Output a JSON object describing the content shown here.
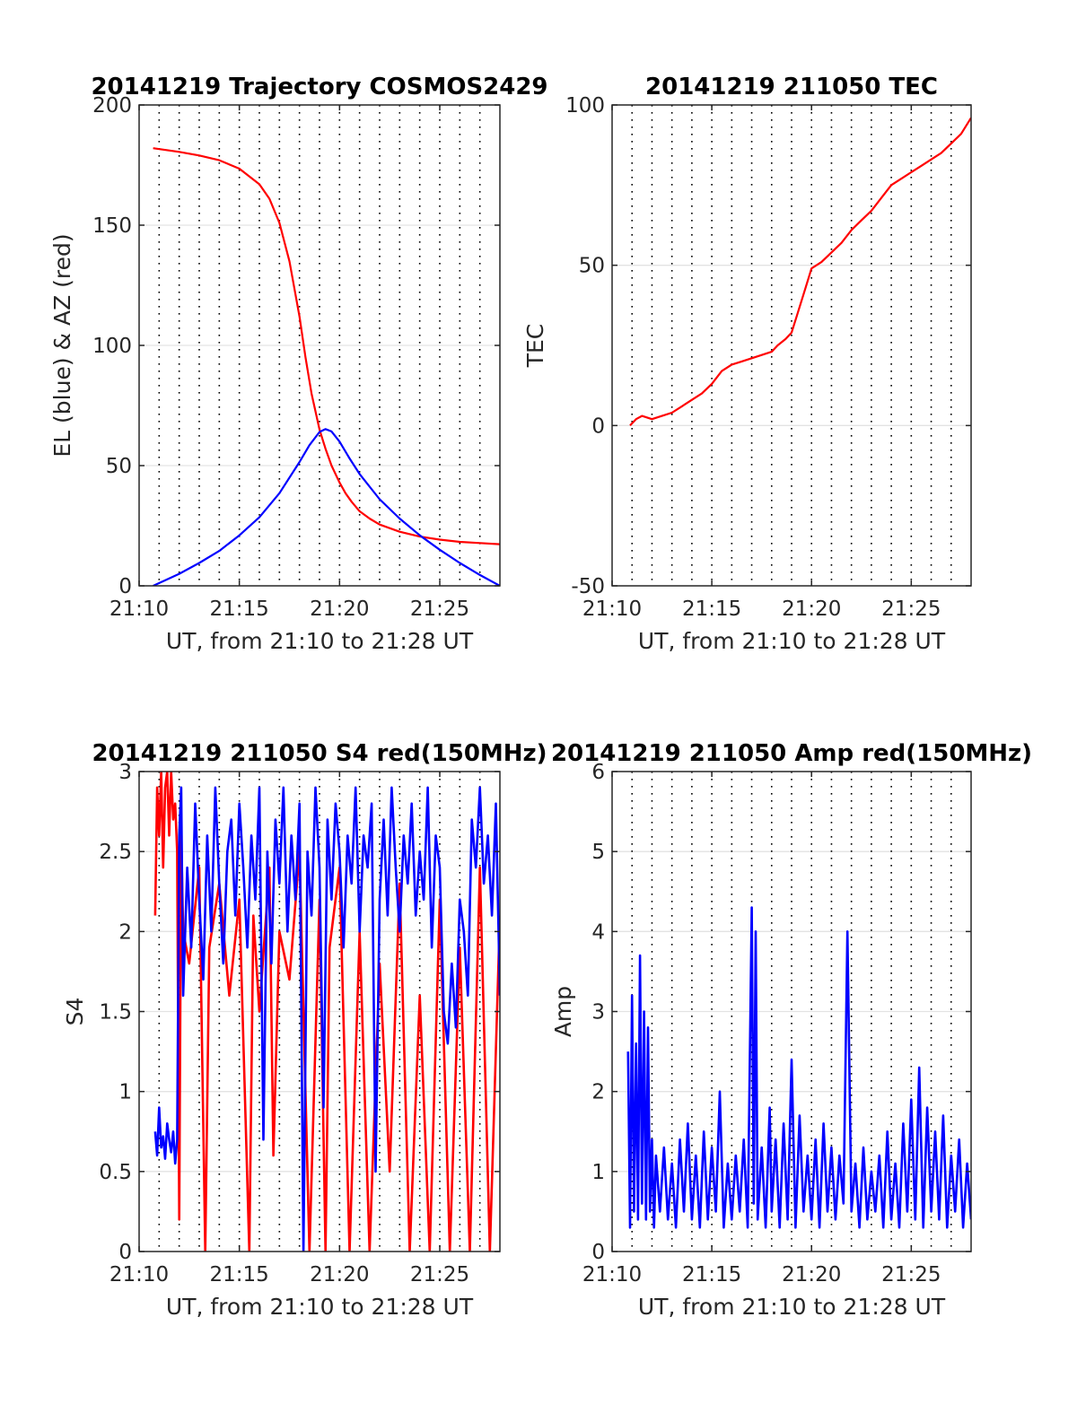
{
  "chart_data": [
    {
      "id": "trajectory",
      "type": "line",
      "title": "20141219 Trajectory COSMOS2429",
      "xlabel": "UT, from 21:10 to 21:28 UT",
      "ylabel": "EL (blue) & AZ (red)",
      "xlim": [
        0,
        18
      ],
      "ylim": [
        0,
        200
      ],
      "x_ticks": [
        {
          "v": 0,
          "label": "21:10"
        },
        {
          "v": 5,
          "label": "21:15"
        },
        {
          "v": 10,
          "label": "21:20"
        },
        {
          "v": 15,
          "label": "21:25"
        }
      ],
      "y_ticks": [
        {
          "v": 0,
          "label": "0"
        },
        {
          "v": 50,
          "label": "50"
        },
        {
          "v": 100,
          "label": "100"
        },
        {
          "v": 150,
          "label": "150"
        },
        {
          "v": 200,
          "label": "200"
        }
      ],
      "grid": "y solid, x dotted every minute",
      "series": [
        {
          "color": "#ff0000",
          "x": [
            0.7,
            2,
            3,
            4,
            5,
            6,
            6.5,
            7,
            7.5,
            8,
            8.3,
            8.6,
            9,
            9.3,
            9.6,
            10,
            10.3,
            10.6,
            11,
            11.5,
            12,
            13,
            14,
            15,
            16,
            17,
            18
          ],
          "values": [
            182,
            180.5,
            179,
            177,
            173.5,
            167,
            161,
            151,
            135,
            112,
            95,
            80,
            65,
            57,
            50,
            43,
            38.5,
            35,
            31,
            28,
            25.5,
            22.5,
            20.5,
            19.2,
            18.3,
            17.8,
            17.3
          ]
        },
        {
          "color": "#0000ff",
          "x": [
            0.7,
            2,
            3,
            4,
            5,
            6,
            7,
            8,
            8.5,
            9,
            9.3,
            9.6,
            10,
            10.5,
            11,
            12,
            13,
            14,
            15,
            16,
            17,
            18
          ],
          "values": [
            0,
            5,
            9.5,
            14.5,
            21,
            28.5,
            38.5,
            51.5,
            58.5,
            64,
            65.2,
            64.2,
            60,
            53,
            46.5,
            36,
            28,
            21,
            15,
            9.5,
            4.5,
            0
          ]
        }
      ]
    },
    {
      "id": "tec",
      "type": "line",
      "title": "20141219 211050 TEC",
      "xlabel": "UT, from 21:10 to 21:28 UT",
      "ylabel": "TEC",
      "xlim": [
        0,
        18
      ],
      "ylim": [
        -50,
        100
      ],
      "x_ticks": [
        {
          "v": 0,
          "label": "21:10"
        },
        {
          "v": 5,
          "label": "21:15"
        },
        {
          "v": 10,
          "label": "21:20"
        },
        {
          "v": 15,
          "label": "21:25"
        }
      ],
      "y_ticks": [
        {
          "v": -50,
          "label": "-50"
        },
        {
          "v": 0,
          "label": "0"
        },
        {
          "v": 50,
          "label": "50"
        },
        {
          "v": 100,
          "label": "100"
        }
      ],
      "grid": "y solid, x dotted every minute",
      "series": [
        {
          "color": "#ff0000",
          "x": [
            0.9,
            1.2,
            1.5,
            2,
            2.5,
            3,
            3.5,
            4,
            4.5,
            5,
            5.5,
            6,
            6.5,
            7,
            7.5,
            8,
            8.3,
            8.7,
            9,
            9.3,
            9.7,
            10,
            10.5,
            11,
            11.5,
            12,
            12.5,
            13,
            13.5,
            14,
            14.5,
            15,
            15.5,
            16,
            16.5,
            17,
            17.5,
            18
          ],
          "values": [
            0,
            2,
            3,
            2,
            3,
            4,
            6,
            8,
            10,
            13,
            17,
            19,
            20,
            21,
            22,
            23,
            25,
            27,
            29,
            35,
            43,
            49,
            51,
            54,
            57,
            61,
            64,
            67,
            71,
            75,
            77,
            79,
            81,
            83,
            85,
            88,
            91,
            96
          ]
        }
      ]
    },
    {
      "id": "s4",
      "type": "line",
      "title": "20141219 211050 S4 red(150MHz)",
      "xlabel": "UT, from 21:10 to 21:28 UT",
      "ylabel": "S4",
      "xlim": [
        0,
        18
      ],
      "ylim": [
        0,
        3
      ],
      "x_ticks": [
        {
          "v": 0,
          "label": "21:10"
        },
        {
          "v": 5,
          "label": "21:15"
        },
        {
          "v": 10,
          "label": "21:20"
        },
        {
          "v": 15,
          "label": "21:25"
        }
      ],
      "y_ticks": [
        {
          "v": 0,
          "label": "0"
        },
        {
          "v": 0.5,
          "label": "0.5"
        },
        {
          "v": 1,
          "label": "1"
        },
        {
          "v": 1.5,
          "label": "1.5"
        },
        {
          "v": 2,
          "label": "2"
        },
        {
          "v": 2.5,
          "label": "2.5"
        },
        {
          "v": 3,
          "label": "3"
        }
      ],
      "grid": "y solid, x dotted every minute",
      "series": [
        {
          "color": "#ff0000",
          "x": [
            0.8,
            0.9,
            1.0,
            1.1,
            1.2,
            1.3,
            1.4,
            1.5,
            1.6,
            1.7,
            1.8,
            1.9,
            2.0,
            2.1,
            2.2,
            2.5,
            3.0,
            3.3,
            3.5,
            4.0,
            4.5,
            5.0,
            5.5,
            5.7,
            6.0,
            6.5,
            6.7,
            7.0,
            7.5,
            8.0,
            8.5,
            9.0,
            9.3,
            9.5,
            10.0,
            10.5,
            11.0,
            11.5,
            12.0,
            12.5,
            13.0,
            13.5,
            14.0,
            14.5,
            15.0,
            15.5,
            16.0,
            16.5,
            17.0,
            17.5,
            18.0
          ],
          "values": [
            2.1,
            2.9,
            2.6,
            3.0,
            2.4,
            2.9,
            3.0,
            2.6,
            3.0,
            2.7,
            2.8,
            2.5,
            0.2,
            2.6,
            2.0,
            1.8,
            2.4,
            0.0,
            1.9,
            2.3,
            1.6,
            2.2,
            0.0,
            2.1,
            1.5,
            2.4,
            0.6,
            2.0,
            1.7,
            2.5,
            0.0,
            2.2,
            0.0,
            1.9,
            2.4,
            0.0,
            2.0,
            0.0,
            1.8,
            0.5,
            2.3,
            0.0,
            1.6,
            0.0,
            2.2,
            0.0,
            1.9,
            0.0,
            2.4,
            0.0,
            2.1
          ]
        },
        {
          "color": "#0000ff",
          "x": [
            0.8,
            0.9,
            1.0,
            1.1,
            1.2,
            1.3,
            1.4,
            1.5,
            1.6,
            1.7,
            1.8,
            1.9,
            2.0,
            2.1,
            2.2,
            2.4,
            2.6,
            2.8,
            3.0,
            3.2,
            3.4,
            3.6,
            3.8,
            4.0,
            4.2,
            4.4,
            4.6,
            4.8,
            5.0,
            5.2,
            5.4,
            5.6,
            5.8,
            6.0,
            6.2,
            6.4,
            6.6,
            6.8,
            7.0,
            7.2,
            7.4,
            7.6,
            7.8,
            8.0,
            8.2,
            8.4,
            8.6,
            8.8,
            9.0,
            9.2,
            9.4,
            9.6,
            9.8,
            10.0,
            10.2,
            10.4,
            10.6,
            10.8,
            11.0,
            11.2,
            11.4,
            11.6,
            11.8,
            12.0,
            12.2,
            12.4,
            12.6,
            12.8,
            13.0,
            13.2,
            13.4,
            13.6,
            13.8,
            14.0,
            14.2,
            14.4,
            14.6,
            14.8,
            15.0,
            15.2,
            15.4,
            15.6,
            15.8,
            16.0,
            16.2,
            16.4,
            16.6,
            16.8,
            17.0,
            17.2,
            17.4,
            17.6,
            17.8,
            18.0
          ],
          "values": [
            0.75,
            0.6,
            0.9,
            0.65,
            0.72,
            0.58,
            0.8,
            0.7,
            0.62,
            0.75,
            0.55,
            0.7,
            2.6,
            2.9,
            1.6,
            2.4,
            1.9,
            2.8,
            2.2,
            1.7,
            2.6,
            2.0,
            2.9,
            2.3,
            1.8,
            2.5,
            2.7,
            2.1,
            2.8,
            2.4,
            1.9,
            2.6,
            2.2,
            2.9,
            0.7,
            2.5,
            1.8,
            2.7,
            2.3,
            2.9,
            2.0,
            2.6,
            2.2,
            2.8,
            0.0,
            2.5,
            2.1,
            2.9,
            2.4,
            0.9,
            2.7,
            2.2,
            2.8,
            2.5,
            1.9,
            2.6,
            2.3,
            2.9,
            2.0,
            2.6,
            2.4,
            2.8,
            0.5,
            2.2,
            2.7,
            2.1,
            2.9,
            2.4,
            2.0,
            2.6,
            2.3,
            2.8,
            2.1,
            2.5,
            2.2,
            2.9,
            1.9,
            2.6,
            2.4,
            1.5,
            1.3,
            1.8,
            1.4,
            2.2,
            2.0,
            1.6,
            2.7,
            2.4,
            2.9,
            2.3,
            2.6,
            2.1,
            2.8,
            1.6
          ]
        }
      ]
    },
    {
      "id": "amp",
      "type": "line",
      "title": "20141219 211050 Amp red(150MHz)",
      "xlabel": "UT, from 21:10 to 21:28 UT",
      "ylabel": "Amp",
      "xlim": [
        0,
        18
      ],
      "ylim": [
        0,
        6
      ],
      "x_ticks": [
        {
          "v": 0,
          "label": "21:10"
        },
        {
          "v": 5,
          "label": "21:15"
        },
        {
          "v": 10,
          "label": "21:20"
        },
        {
          "v": 15,
          "label": "21:25"
        }
      ],
      "y_ticks": [
        {
          "v": 0,
          "label": "0"
        },
        {
          "v": 1,
          "label": "1"
        },
        {
          "v": 2,
          "label": "2"
        },
        {
          "v": 3,
          "label": "3"
        },
        {
          "v": 4,
          "label": "4"
        },
        {
          "v": 5,
          "label": "5"
        },
        {
          "v": 6,
          "label": "6"
        }
      ],
      "grid": "y solid, x dotted every minute",
      "series": [
        {
          "color": "#0000ff",
          "x": [
            0.8,
            0.9,
            1.0,
            1.1,
            1.2,
            1.3,
            1.4,
            1.5,
            1.6,
            1.7,
            1.8,
            1.9,
            2.0,
            2.1,
            2.2,
            2.4,
            2.6,
            2.8,
            3.0,
            3.2,
            3.4,
            3.6,
            3.8,
            4.0,
            4.2,
            4.4,
            4.6,
            4.8,
            5.0,
            5.2,
            5.4,
            5.6,
            5.8,
            6.0,
            6.2,
            6.4,
            6.6,
            6.8,
            7.0,
            7.1,
            7.2,
            7.3,
            7.5,
            7.7,
            7.9,
            8.0,
            8.2,
            8.4,
            8.6,
            8.8,
            9.0,
            9.2,
            9.4,
            9.6,
            9.8,
            10.0,
            10.2,
            10.4,
            10.6,
            10.8,
            11.0,
            11.2,
            11.4,
            11.6,
            11.8,
            12.0,
            12.2,
            12.4,
            12.6,
            12.8,
            13.0,
            13.2,
            13.4,
            13.6,
            13.8,
            14.0,
            14.2,
            14.4,
            14.6,
            14.8,
            15.0,
            15.2,
            15.4,
            15.6,
            15.8,
            16.0,
            16.2,
            16.4,
            16.6,
            16.8,
            17.0,
            17.2,
            17.4,
            17.6,
            17.8,
            18.0
          ],
          "values": [
            2.5,
            0.3,
            3.2,
            0.5,
            2.6,
            0.4,
            3.7,
            0.6,
            3.0,
            0.4,
            2.8,
            0.5,
            1.4,
            0.3,
            1.2,
            0.5,
            1.3,
            0.4,
            1.1,
            0.3,
            1.4,
            0.5,
            1.6,
            0.4,
            1.2,
            0.3,
            1.5,
            0.4,
            1.3,
            0.5,
            2.0,
            0.3,
            1.1,
            0.4,
            1.2,
            0.5,
            1.4,
            0.3,
            4.3,
            0.6,
            4.0,
            0.4,
            1.3,
            0.3,
            1.8,
            0.5,
            1.4,
            0.3,
            1.6,
            0.4,
            2.4,
            0.3,
            1.7,
            0.5,
            1.2,
            0.4,
            1.4,
            0.3,
            1.6,
            0.5,
            1.3,
            0.4,
            1.2,
            0.6,
            4.0,
            0.5,
            1.1,
            0.3,
            1.3,
            0.4,
            1.0,
            0.5,
            1.2,
            0.3,
            1.5,
            0.4,
            1.1,
            0.3,
            1.6,
            0.5,
            1.9,
            0.4,
            2.3,
            0.3,
            1.8,
            0.5,
            1.5,
            0.4,
            1.7,
            0.3,
            1.2,
            0.5,
            1.4,
            0.3,
            1.1,
            0.4
          ]
        }
      ]
    }
  ]
}
